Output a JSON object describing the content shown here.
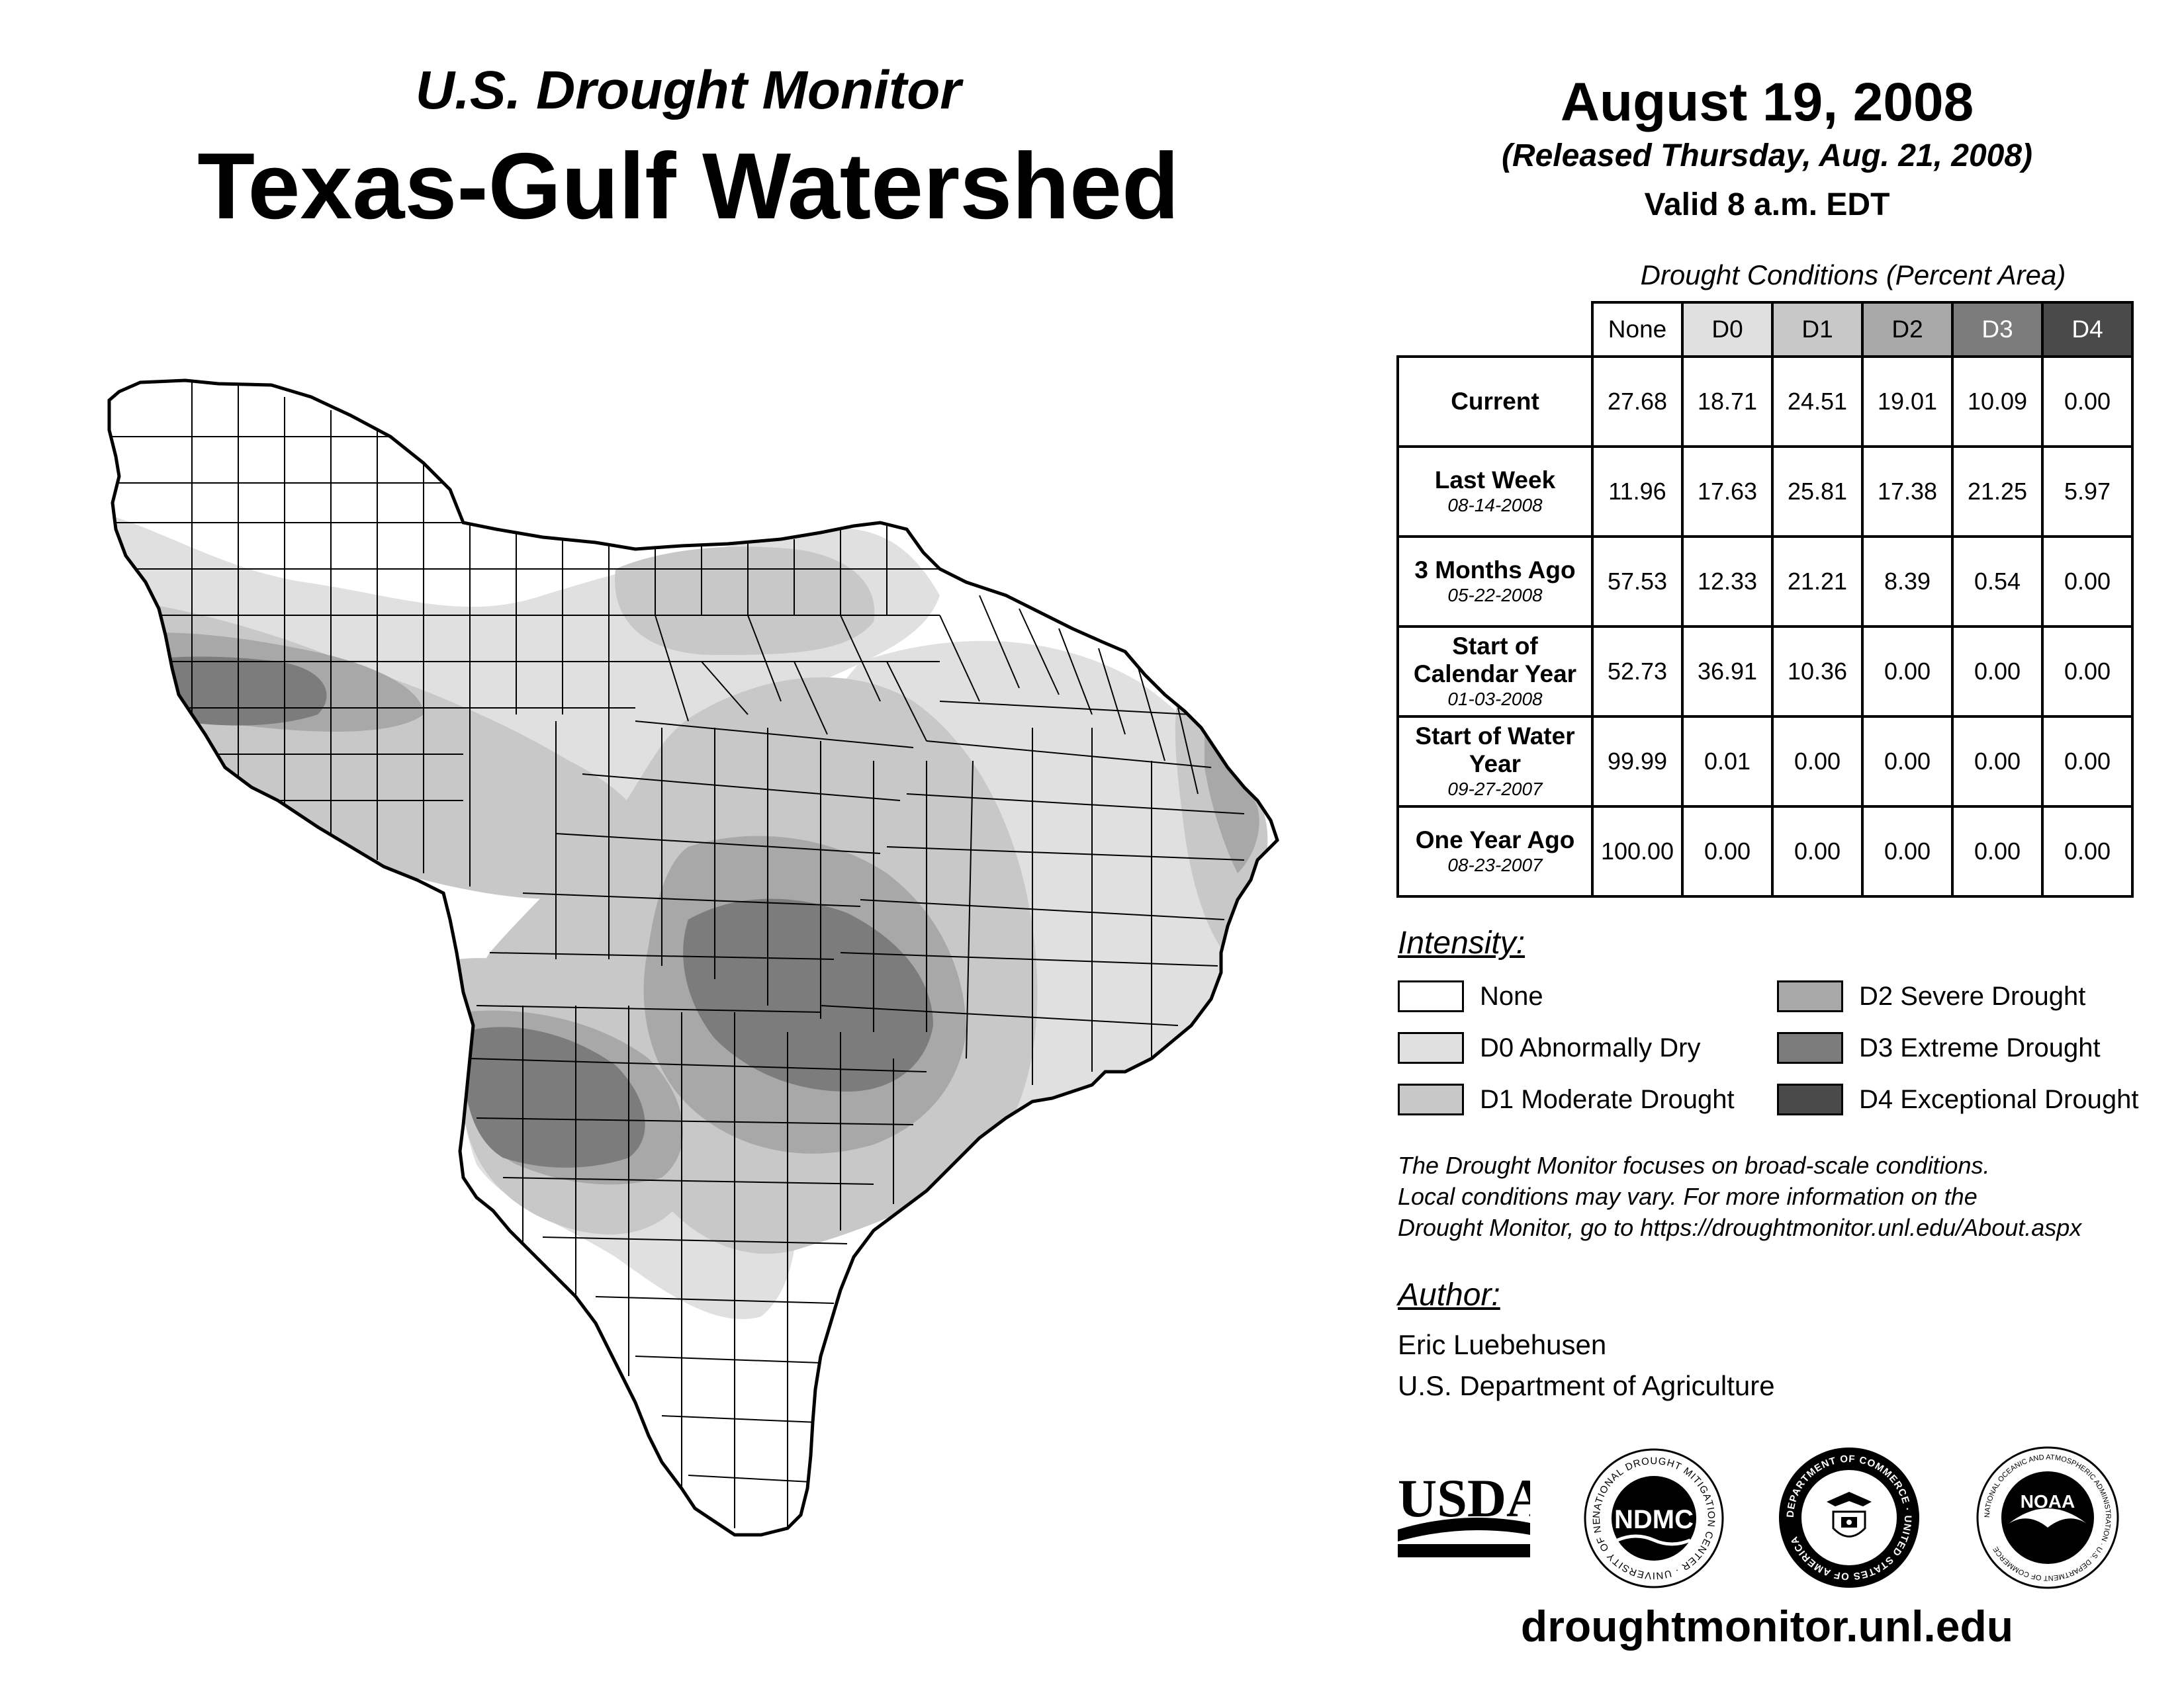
{
  "header": {
    "subtitle": "U.S. Drought Monitor",
    "title": "Texas-Gulf Watershed",
    "date": "August 19, 2008",
    "released": "(Released Thursday, Aug. 21, 2008)",
    "valid": "Valid 8 a.m. EDT"
  },
  "table": {
    "caption": "Drought Conditions (Percent Area)",
    "columns": [
      "None",
      "D0",
      "D1",
      "D2",
      "D3",
      "D4"
    ],
    "rows": [
      {
        "label": "Current",
        "date": "",
        "values": [
          "27.68",
          "18.71",
          "24.51",
          "19.01",
          "10.09",
          "0.00"
        ]
      },
      {
        "label": "Last Week",
        "date": "08-14-2008",
        "values": [
          "11.96",
          "17.63",
          "25.81",
          "17.38",
          "21.25",
          "5.97"
        ]
      },
      {
        "label": "3 Months Ago",
        "date": "05-22-2008",
        "values": [
          "57.53",
          "12.33",
          "21.21",
          "8.39",
          "0.54",
          "0.00"
        ]
      },
      {
        "label": "Start of Calendar Year",
        "date": "01-03-2008",
        "values": [
          "52.73",
          "36.91",
          "10.36",
          "0.00",
          "0.00",
          "0.00"
        ]
      },
      {
        "label": "Start of Water Year",
        "date": "09-27-2007",
        "values": [
          "99.99",
          "0.01",
          "0.00",
          "0.00",
          "0.00",
          "0.00"
        ]
      },
      {
        "label": "One Year Ago",
        "date": "08-23-2007",
        "values": [
          "100.00",
          "0.00",
          "0.00",
          "0.00",
          "0.00",
          "0.00"
        ]
      }
    ]
  },
  "legend": {
    "title": "Intensity:",
    "items": [
      {
        "label": "None",
        "color": "#ffffff"
      },
      {
        "label": "D0 Abnormally Dry",
        "color": "#e0e0e0"
      },
      {
        "label": "D1 Moderate Drought",
        "color": "#c8c8c8"
      },
      {
        "label": "D2 Severe Drought",
        "color": "#a8a8a8"
      },
      {
        "label": "D3 Extreme Drought",
        "color": "#7c7c7c"
      },
      {
        "label": "D4 Exceptional Drought",
        "color": "#4a4a4a"
      }
    ]
  },
  "note": {
    "line1": "The Drought Monitor focuses on broad-scale conditions.",
    "line2": "Local conditions may vary. For more information on the",
    "line3": "Drought Monitor, go to https://droughtmonitor.unl.edu/About.aspx"
  },
  "author": {
    "title": "Author:",
    "name": "Eric Luebehusen",
    "org": "U.S. Department of Agriculture"
  },
  "logos": {
    "usda": "USDA",
    "ndmc": "NDMC",
    "ndmc_ring": "NATIONAL DROUGHT MITIGATION CENTER · UNIVERSITY OF NEBRASKA",
    "doc_ring": "DEPARTMENT OF COMMERCE · UNITED STATES OF AMERICA",
    "noaa": "NOAA",
    "noaa_ring": "NATIONAL OCEANIC AND ATMOSPHERIC ADMINISTRATION · U.S. DEPARTMENT OF COMMERCE"
  },
  "footer": {
    "url": "droughtmonitor.unl.edu"
  },
  "colors": {
    "none": "#ffffff",
    "d0": "#e0e0e0",
    "d1": "#c8c8c8",
    "d2": "#a8a8a8",
    "d3": "#7c7c7c",
    "d4": "#4a4a4a"
  }
}
